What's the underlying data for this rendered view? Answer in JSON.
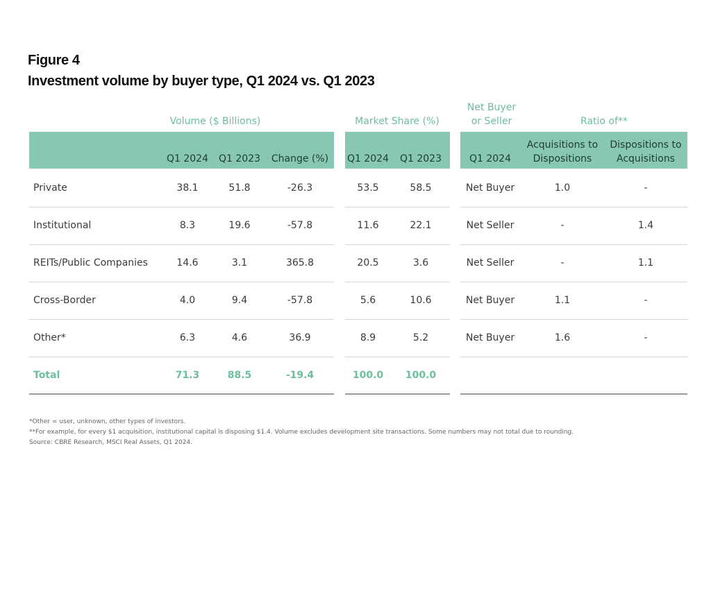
{
  "header": {
    "figure": "Figure 4",
    "title": "Investment volume by buyer type, Q1 2024 vs. Q1 2023"
  },
  "table": {
    "groups": [
      {
        "lines": [
          "Volume ($ Billions)"
        ]
      },
      {
        "lines": [
          "Market Share (%)"
        ]
      },
      {
        "lines": [
          "Net Buyer",
          "or Seller"
        ]
      },
      {
        "lines": [
          "Ratio of**"
        ]
      }
    ],
    "columns": [
      [
        "Q1 2024"
      ],
      [
        "Q1 2023"
      ],
      [
        "Change (%)"
      ],
      [
        "Q1 2024"
      ],
      [
        "Q1 2023"
      ],
      [
        "Q1 2024"
      ],
      [
        "Acquisitions to",
        "Dispositions"
      ],
      [
        "Dispositions to",
        "Acquisitions"
      ]
    ],
    "rows": [
      [
        "Private",
        "38.1",
        "51.8",
        "-26.3",
        "53.5",
        "58.5",
        "Net Buyer",
        "1.0",
        "-"
      ],
      [
        "Institutional",
        "8.3",
        "19.6",
        "-57.8",
        "11.6",
        "22.1",
        "Net Seller",
        "-",
        "1.4"
      ],
      [
        "REITs/Public Companies",
        "14.6",
        "3.1",
        "365.8",
        "20.5",
        "3.6",
        "Net Seller",
        "-",
        "1.1"
      ],
      [
        "Cross-Border",
        "4.0",
        "9.4",
        "-57.8",
        "5.6",
        "10.6",
        "Net Buyer",
        "1.1",
        "-"
      ],
      [
        "Other*",
        "6.3",
        "4.6",
        "36.9",
        "8.9",
        "5.2",
        "Net Buyer",
        "1.6",
        "-"
      ]
    ],
    "total": [
      "Total",
      "71.3",
      "88.5",
      "-19.4",
      "100.0",
      "100.0"
    ]
  },
  "footnotes": [
    "*Other = user, unknown, other types of investors.",
    "**For example, for every $1 acquisition, institutional capital is disposing $1.4. Volume excludes development site transactions. Some numbers may not total due to rounding.",
    "Source: CBRE Research, MSCI Real Assets, Q1 2024."
  ]
}
